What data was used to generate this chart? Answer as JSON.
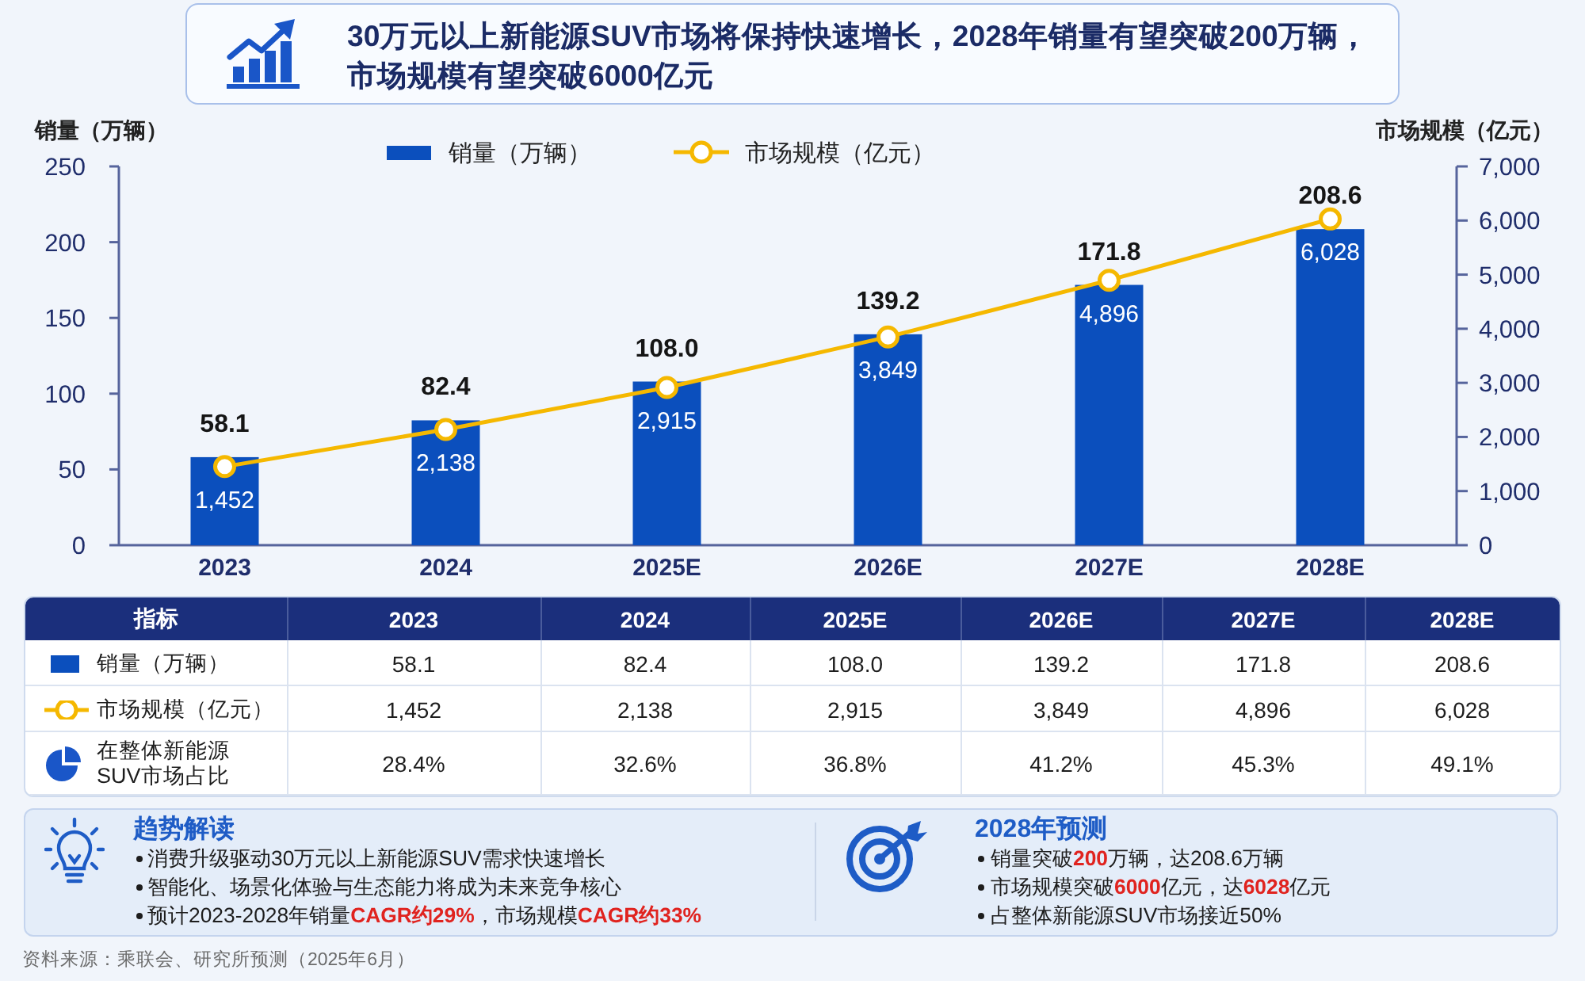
{
  "chart_data": {
    "type": "bar",
    "title": "30万元以上新能源SUV市场将保持快速增长，2028年销量有望突破200万辆，市场规模有望突破6000亿元",
    "categories": [
      "2023",
      "2024",
      "2025E",
      "2026E",
      "2027E",
      "2028E"
    ],
    "series": [
      {
        "name": "销量（万辆）",
        "color": "#0b4fbd",
        "values": [
          58.1,
          82.4,
          108.0,
          139.2,
          171.8,
          208.6
        ],
        "value_labels": [
          "58.1",
          "82.4",
          "108.0",
          "139.2",
          "171.8",
          "208.6"
        ]
      },
      {
        "name": "市场规模（亿元）",
        "type": "line",
        "axis": "y2",
        "color": "#f5b800",
        "values": [
          1452,
          2138,
          2915,
          3849,
          4896,
          6028
        ],
        "value_labels": [
          "1,452",
          "2,138",
          "2,915",
          "3,849",
          "4,896",
          "6,028"
        ]
      }
    ],
    "ylabel": "销量（万辆）",
    "y2label": "市场规模（亿元）",
    "ylim": [
      0,
      250
    ],
    "yticks": [
      0,
      50,
      100,
      150,
      200,
      250
    ],
    "y2lim": [
      0,
      7000
    ],
    "y2ticks": [
      0,
      {
        "value": 1000,
        "label": "1,000"
      },
      {
        "value": 2000,
        "label": "2,000"
      },
      {
        "value": 3000,
        "label": "3,000"
      },
      {
        "value": 4000,
        "label": "4,000"
      },
      {
        "value": 5000,
        "label": "5,000"
      },
      {
        "value": 6000,
        "label": "6,000"
      },
      {
        "value": 7000,
        "label": "7,000"
      }
    ],
    "legend": "top",
    "marker": "circle",
    "annotations": [
      "指标",
      "在整体新能源SUV市场占比",
      "28.4%",
      "32.6%",
      "36.8%",
      "41.2%",
      "45.3%",
      "49.1%",
      "趋势解读",
      "消费升级驱动30万元以上新能源SUV需求快速增长",
      "智能化、场景化体验与生态能力将成为未来竞争核心",
      "预计2023-2028年销量**CAGR约29%**，市场规模**CAGR约33%**",
      "2028年预测",
      "销量突破**200**万辆，达208.6万辆",
      "市场规模突破**6000**亿元，达**6028**亿元",
      "占整体新能源SUV市场接近50%",
      "资料来源：乘联会、研究所预测（2025年6月）"
    ]
  }
}
